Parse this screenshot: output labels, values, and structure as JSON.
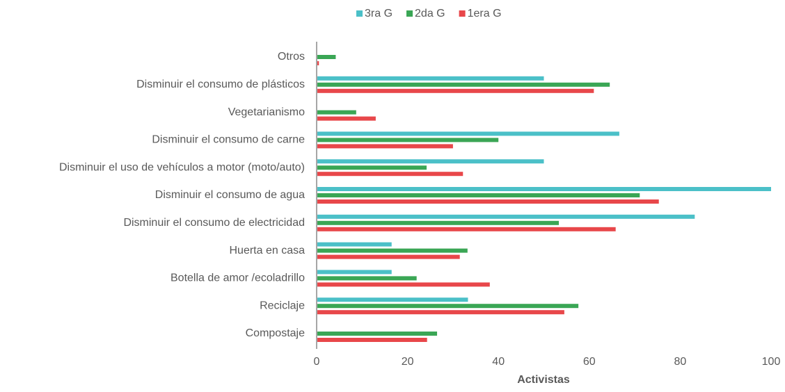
{
  "chart_data": {
    "type": "hbar",
    "categories": [
      "Otros",
      "Disminuir el consumo de plásticos",
      "Vegetarianismo",
      "Disminuir el consumo de carne",
      "Disminuir el uso de vehículos a motor (moto/auto)",
      "Disminuir el consumo de agua",
      "Disminuir el consumo de electricidad",
      "Huerta en casa",
      "Botella de amor /ecoladrillo",
      "Reciclaje",
      "Compostaje"
    ],
    "series": [
      {
        "name": "3ra G",
        "color": "#4bc0c8",
        "values": [
          0,
          50,
          0,
          66.6,
          50,
          100,
          83.2,
          16.5,
          16.5,
          33.3,
          0
        ]
      },
      {
        "name": "2da G",
        "color": "#3aa655",
        "values": [
          4.2,
          64.5,
          8.7,
          40,
          24.2,
          71.1,
          53.3,
          33.2,
          22,
          57.6,
          26.5
        ]
      },
      {
        "name": "1era G",
        "color": "#e8474a",
        "values": [
          0.5,
          61,
          13,
          30,
          32.2,
          75.3,
          65.8,
          31.5,
          38.1,
          54.5,
          24.3
        ]
      }
    ],
    "xlabel": "Activistas",
    "xlim": [
      0,
      100
    ],
    "xticks": [
      0,
      20,
      40,
      60,
      80,
      100
    ],
    "legend": "top"
  }
}
